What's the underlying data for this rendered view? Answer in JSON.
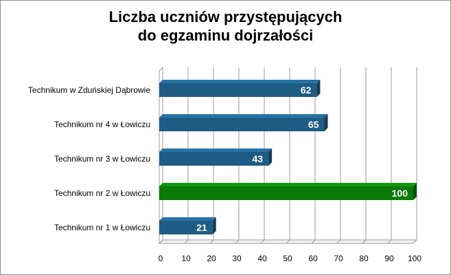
{
  "chart_data": {
    "type": "bar",
    "orientation": "horizontal",
    "style": "3d",
    "title_lines": [
      "Liczba uczniów przystępujących",
      "do egzaminu dojrzałości"
    ],
    "categories": [
      "Technikum w Zduńskiej Dąbrowie",
      "Technikum nr 4 w Łowiczu",
      "Technikum nr 3 w Łowiczu",
      "Technikum nr 2 w Łowiczu",
      "Technikum nr 1 w Łowiczu"
    ],
    "values": [
      62,
      65,
      43,
      100,
      21
    ],
    "data_labels": [
      "62",
      "65",
      "43",
      "100",
      "21"
    ],
    "xlim": [
      0,
      100
    ],
    "x_ticks": [
      "0",
      "10",
      "20",
      "30",
      "40",
      "50",
      "60",
      "70",
      "80",
      "90",
      "100"
    ],
    "grid": true,
    "legend": "none",
    "colors": {
      "default": "#1f5c85",
      "highlight": "#0a7a0a",
      "highlight_index": 3,
      "grid": "#9a9a9a"
    }
  }
}
